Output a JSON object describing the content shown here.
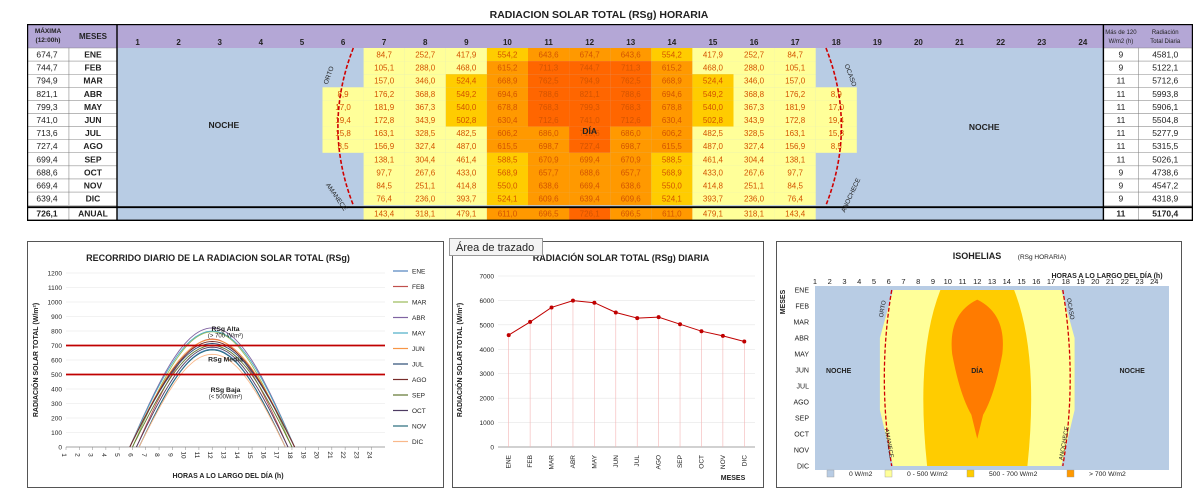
{
  "top_table": {
    "title": "RADIACION SOLAR TOTAL (RSg) HORARIA",
    "header_max": [
      "MÁXIMA",
      "(12:00h)"
    ],
    "header_meses": "MESES",
    "header_mas120": [
      "Más de 120",
      "W/m2 (h)"
    ],
    "header_total": [
      "Radiación",
      "Total Diaria"
    ],
    "hours": [
      "1",
      "2",
      "3",
      "4",
      "5",
      "6",
      "7",
      "8",
      "9",
      "10",
      "11",
      "12",
      "13",
      "14",
      "15",
      "16",
      "17",
      "18",
      "19",
      "20",
      "21",
      "22",
      "23",
      "24"
    ],
    "rows": [
      {
        "max": "674,7",
        "mes": "ENE",
        "vals": [
          "84,7",
          "252,7",
          "417,9",
          "554,2",
          "643,6",
          "674,7",
          "643,6",
          "554,2",
          "417,9",
          "252,7",
          "84,7"
        ],
        "start": 7,
        "mas120": "9",
        "total": "4581,0"
      },
      {
        "max": "744,7",
        "mes": "FEB",
        "vals": [
          "105,1",
          "288,0",
          "468,0",
          "615,2",
          "711,3",
          "744,7",
          "711,3",
          "615,2",
          "468,0",
          "288,0",
          "105,1"
        ],
        "start": 7,
        "mas120": "9",
        "total": "5122,1"
      },
      {
        "max": "794,9",
        "mes": "MAR",
        "vals": [
          "157,0",
          "346,0",
          "524,4",
          "668,9",
          "762,5",
          "794,9",
          "762,5",
          "668,9",
          "524,4",
          "346,0",
          "157,0"
        ],
        "start": 7,
        "mas120": "11",
        "total": "5712,6"
      },
      {
        "max": "821,1",
        "mes": "ABR",
        "vals": [
          "8,9",
          "176,2",
          "368,8",
          "549,2",
          "694,6",
          "788,6",
          "821,1",
          "788,6",
          "694,6",
          "549,2",
          "368,8",
          "176,2",
          "8,9"
        ],
        "start": 6,
        "mas120": "11",
        "total": "5993,8"
      },
      {
        "max": "799,3",
        "mes": "MAY",
        "vals": [
          "17,0",
          "181,9",
          "367,3",
          "540,0",
          "678,8",
          "768,3",
          "799,3",
          "768,3",
          "678,8",
          "540,0",
          "367,3",
          "181,9",
          "17,0"
        ],
        "start": 6,
        "mas120": "11",
        "total": "5906,1"
      },
      {
        "max": "741,0",
        "mes": "JUN",
        "vals": [
          "19,4",
          "172,8",
          "343,9",
          "502,8",
          "630,4",
          "712,6",
          "741,0",
          "712,6",
          "630,4",
          "502,8",
          "343,9",
          "172,8",
          "19,4"
        ],
        "start": 6,
        "mas120": "11",
        "total": "5504,8"
      },
      {
        "max": "713,6",
        "mes": "JUL",
        "vals": [
          "15,8",
          "163,1",
          "328,5",
          "482,5",
          "606,2",
          "686,0",
          "713,6",
          "686,0",
          "606,2",
          "482,5",
          "328,5",
          "163,1",
          "15,8"
        ],
        "start": 6,
        "mas120": "11",
        "total": "5277,9"
      },
      {
        "max": "727,4",
        "mes": "AGO",
        "vals": [
          "8,5",
          "156,9",
          "327,4",
          "487,0",
          "615,5",
          "698,7",
          "727,4",
          "698,7",
          "615,5",
          "487,0",
          "327,4",
          "156,9",
          "8,5"
        ],
        "start": 6,
        "mas120": "11",
        "total": "5315,5"
      },
      {
        "max": "699,4",
        "mes": "SEP",
        "vals": [
          "138,1",
          "304,4",
          "461,4",
          "588,5",
          "670,9",
          "699,4",
          "670,9",
          "588,5",
          "461,4",
          "304,4",
          "138,1"
        ],
        "start": 7,
        "mas120": "11",
        "total": "5026,1"
      },
      {
        "max": "688,6",
        "mes": "OCT",
        "vals": [
          "97,7",
          "267,6",
          "433,0",
          "568,9",
          "657,7",
          "688,6",
          "657,7",
          "568,9",
          "433,0",
          "267,6",
          "97,7"
        ],
        "start": 7,
        "mas120": "9",
        "total": "4738,6"
      },
      {
        "max": "669,4",
        "mes": "NOV",
        "vals": [
          "84,5",
          "251,1",
          "414,8",
          "550,0",
          "638,6",
          "669,4",
          "638,6",
          "550,0",
          "414,8",
          "251,1",
          "84,5"
        ],
        "start": 7,
        "mas120": "9",
        "total": "4547,2"
      },
      {
        "max": "639,4",
        "mes": "DIC",
        "vals": [
          "76,4",
          "236,0",
          "393,7",
          "524,1",
          "609,6",
          "639,4",
          "609,6",
          "524,1",
          "393,7",
          "236,0",
          "76,4"
        ],
        "start": 7,
        "mas120": "9",
        "total": "4318,9"
      }
    ],
    "annual": {
      "max": "726,1",
      "mes": "ANUAL",
      "vals": [
        "143,4",
        "318,1",
        "479,1",
        "611,0",
        "696,5",
        "726,1",
        "696,5",
        "611,0",
        "479,1",
        "318,1",
        "143,4"
      ],
      "start": 7,
      "mas120": "11",
      "total": "5170,4"
    },
    "labels": {
      "noche": "NOCHE",
      "dia": "DÍA",
      "orto": "ORTO",
      "ocaso": "OCASO",
      "amanece": "AMANECE",
      "anochece": "ANOCHECE"
    },
    "colors": {
      "night": "#b8cce4",
      "low": "#ffff99",
      "mid": "#ffcc00",
      "high": "#ff9900",
      "peak": "#ff6600",
      "header": "#b4a7d6",
      "text": "#222222",
      "valueText": "#c0392b"
    }
  },
  "tooltip": "Área de trazado",
  "chart_data": [
    {
      "type": "line",
      "title": "RECORRIDO DIARIO DE LA RADIACION SOLAR TOTAL (RSg)",
      "xlabel": "HORAS A LO LARGO DEL DÍA (h)",
      "ylabel": "RADIACIÓN SOLAR TOTAL (W/m²)",
      "ylim": [
        0,
        1200
      ],
      "yticks": [
        "0",
        "100",
        "200",
        "300",
        "400",
        "500",
        "600",
        "700",
        "800",
        "900",
        "1000",
        "1100",
        "1200"
      ],
      "xticks": [
        "1",
        "2",
        "3",
        "4",
        "5",
        "6",
        "7",
        "8",
        "9",
        "10",
        "11",
        "12",
        "13",
        "14",
        "15",
        "16",
        "17",
        "18",
        "19",
        "20",
        "21",
        "22",
        "23",
        "24"
      ],
      "legend_position": "right",
      "hlines": [
        700,
        500
      ],
      "annotations": [
        {
          "text": "RSg Alta",
          "at": [
            13,
            800
          ]
        },
        {
          "text": "(> 700 W/m²)",
          "at": [
            13,
            755
          ]
        },
        {
          "text": "RSg Media",
          "at": [
            13,
            590
          ]
        },
        {
          "text": "RSg Baja",
          "at": [
            13,
            380
          ]
        },
        {
          "text": "(< 500W/m²)",
          "at": [
            13,
            335
          ]
        }
      ],
      "series": [
        {
          "name": "ENE",
          "color": "#4f81bd",
          "peak": 674.7,
          "start": 6.5,
          "end": 17.5
        },
        {
          "name": "FEB",
          "color": "#c0504d",
          "peak": 744.7,
          "start": 6.3,
          "end": 17.7
        },
        {
          "name": "MAR",
          "color": "#9bbb59",
          "peak": 794.9,
          "start": 6.0,
          "end": 18.0
        },
        {
          "name": "ABR",
          "color": "#8064a2",
          "peak": 821.1,
          "start": 5.8,
          "end": 18.2
        },
        {
          "name": "MAY",
          "color": "#4bacc6",
          "peak": 799.3,
          "start": 5.8,
          "end": 18.2
        },
        {
          "name": "JUN",
          "color": "#f79646",
          "peak": 741.0,
          "start": 5.8,
          "end": 18.2
        },
        {
          "name": "JUL",
          "color": "#2c4d75",
          "peak": 713.6,
          "start": 5.8,
          "end": 18.2
        },
        {
          "name": "AGO",
          "color": "#772c2a",
          "peak": 727.4,
          "start": 5.8,
          "end": 18.2
        },
        {
          "name": "SEP",
          "color": "#5f7530",
          "peak": 699.4,
          "start": 6.0,
          "end": 18.0
        },
        {
          "name": "OCT",
          "color": "#4d3b62",
          "peak": 688.6,
          "start": 6.3,
          "end": 17.7
        },
        {
          "name": "NOV",
          "color": "#276a7c",
          "peak": 669.4,
          "start": 6.5,
          "end": 17.5
        },
        {
          "name": "DIC",
          "color": "#f9b88a",
          "peak": 639.4,
          "start": 6.5,
          "end": 17.5
        }
      ]
    },
    {
      "type": "line",
      "title": "RADIACIÓN SOLAR TOTAL (RSg) DIARIA",
      "xlabel": "MESES",
      "ylabel": "RADIACIÓN SOLAR TOTAL (W/m²)",
      "ylim": [
        0,
        7000
      ],
      "yticks": [
        "0",
        "1000",
        "2000",
        "3000",
        "4000",
        "5000",
        "6000",
        "7000"
      ],
      "categories": [
        "ENE",
        "FEB",
        "MAR",
        "ABR",
        "MAY",
        "JUN",
        "JUL",
        "AGO",
        "SEP",
        "OCT",
        "NOV",
        "DIC"
      ],
      "values": [
        4581.0,
        5122.1,
        5712.6,
        5993.8,
        5906.1,
        5504.8,
        5277.9,
        5315.5,
        5026.1,
        4738.6,
        4547.2,
        4318.9
      ],
      "color": "#c00000"
    },
    {
      "type": "heatmap",
      "title": "ISOHELIAS",
      "subtitle": "(RSg HORARIA)",
      "xlabel": "HORAS A LO LARGO DEL DÍA (h)",
      "ylabel": "MESES",
      "xticks": [
        "1",
        "2",
        "3",
        "4",
        "5",
        "6",
        "7",
        "8",
        "9",
        "10",
        "11",
        "12",
        "13",
        "14",
        "15",
        "16",
        "17",
        "18",
        "19",
        "20",
        "21",
        "22",
        "23",
        "24"
      ],
      "months": [
        "ENE",
        "FEB",
        "MAR",
        "ABR",
        "MAY",
        "JUN",
        "JUL",
        "AGO",
        "SEP",
        "OCT",
        "NOV",
        "DIC"
      ],
      "legend": [
        {
          "label": "0 W/m2",
          "color": "#b8cce4"
        },
        {
          "label": "0 - 500 W/m2",
          "color": "#ffff99"
        },
        {
          "label": "500 - 700 W/m2",
          "color": "#ffcc00"
        },
        {
          "label": "> 700 W/m2",
          "color": "#ff9900"
        }
      ]
    }
  ]
}
